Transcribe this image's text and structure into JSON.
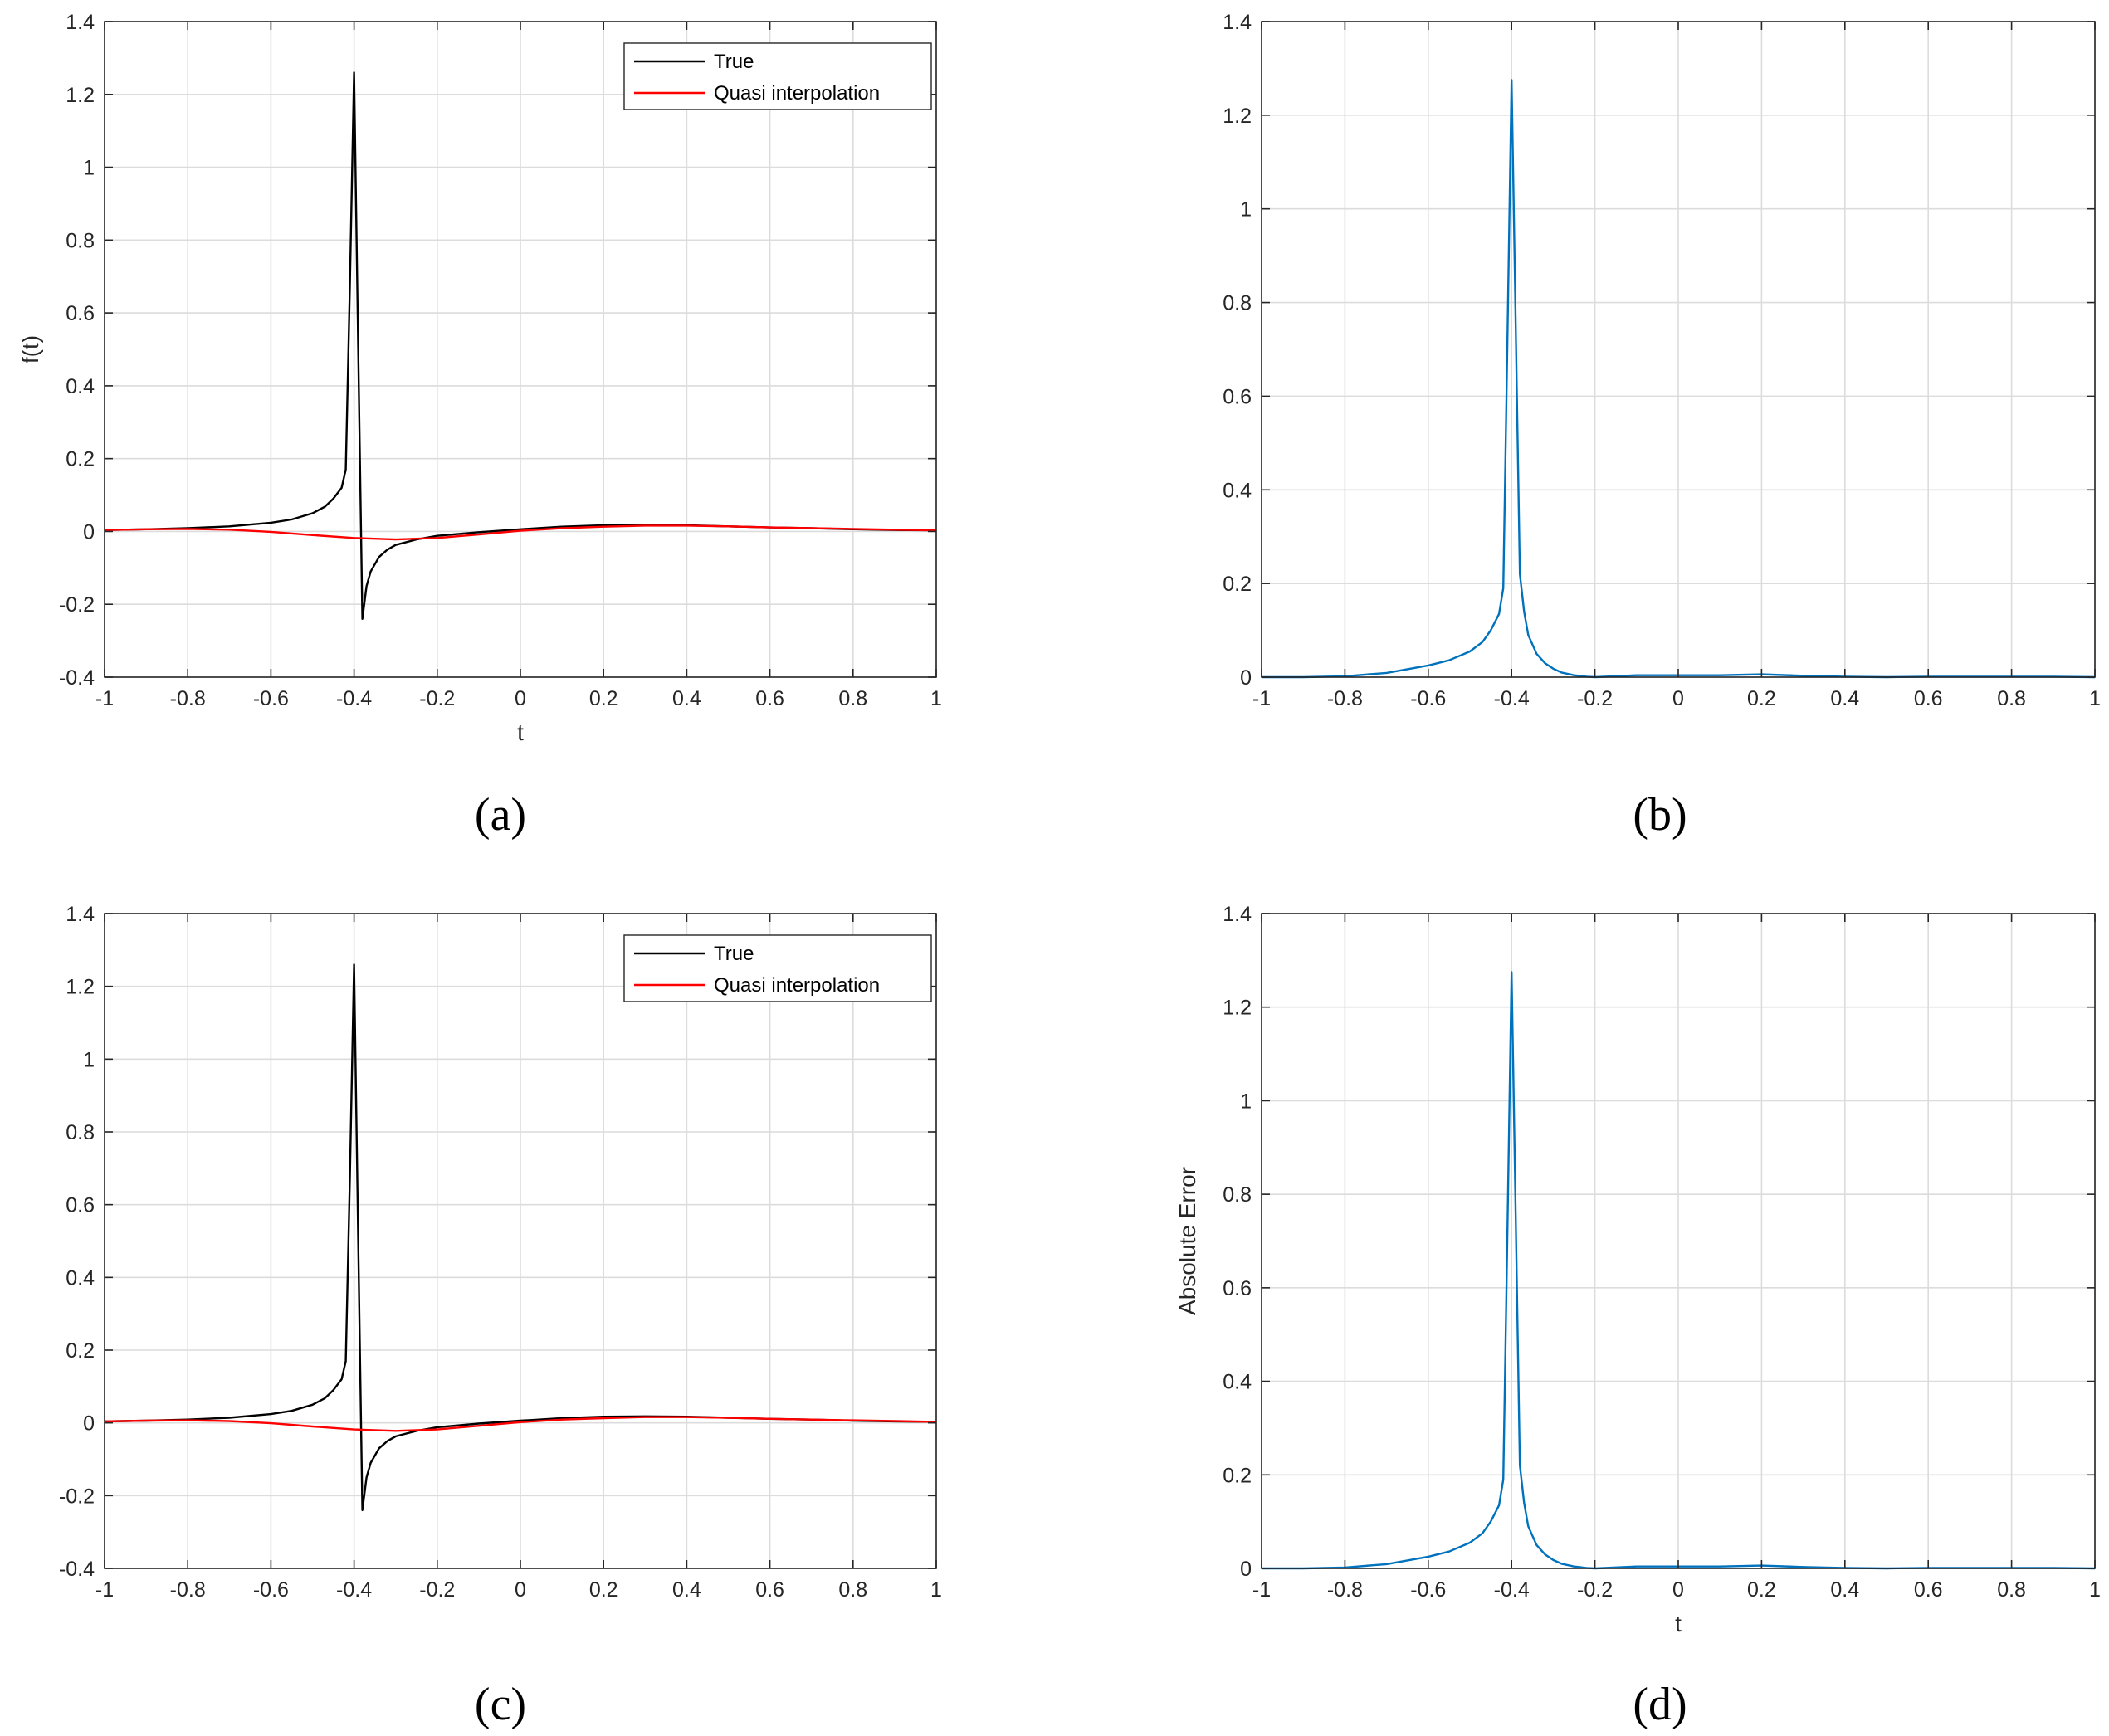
{
  "figure": {
    "panel_labels": [
      "(a)",
      "(b)",
      "(c)",
      "(d)"
    ]
  },
  "chart_data": [
    {
      "panel": "(a)",
      "type": "line",
      "title": "",
      "xlabel": "t",
      "ylabel": "f(t)",
      "xlim": [
        -1,
        1
      ],
      "ylim": [
        -0.4,
        1.4
      ],
      "xticks": [
        -1,
        -0.8,
        -0.6,
        -0.4,
        -0.2,
        0,
        0.2,
        0.4,
        0.6,
        0.8,
        1
      ],
      "xtick_labels": [
        "-1",
        "-0.8",
        "-0.6",
        "-0.4",
        "-0.2",
        "0",
        "0.2",
        "0.4",
        "0.6",
        "0.8",
        "1"
      ],
      "yticks": [
        -0.4,
        -0.2,
        0,
        0.2,
        0.4,
        0.6,
        0.8,
        1,
        1.2,
        1.4
      ],
      "ytick_labels": [
        "-0.4",
        "-0.2",
        "0",
        "0.2",
        "0.4",
        "0.6",
        "0.8",
        "1",
        "1.2",
        "1.4"
      ],
      "grid": true,
      "legend": "top-right",
      "series": [
        {
          "name": "True",
          "color": "#000000",
          "x": [
            -1,
            -0.9,
            -0.8,
            -0.7,
            -0.6,
            -0.55,
            -0.5,
            -0.47,
            -0.45,
            -0.43,
            -0.42,
            -0.41,
            -0.4,
            -0.39,
            -0.38,
            -0.37,
            -0.36,
            -0.34,
            -0.32,
            -0.3,
            -0.25,
            -0.2,
            -0.1,
            0,
            0.1,
            0.2,
            0.3,
            0.4,
            0.5,
            0.6,
            0.7,
            0.8,
            0.9,
            1
          ],
          "y": [
            0.004,
            0.006,
            0.009,
            0.014,
            0.024,
            0.033,
            0.05,
            0.068,
            0.09,
            0.12,
            0.17,
            0.68,
            1.26,
            0.5,
            -0.24,
            -0.15,
            -0.11,
            -0.07,
            -0.05,
            -0.037,
            -0.022,
            -0.012,
            -0.002,
            0.006,
            0.013,
            0.017,
            0.018,
            0.017,
            0.014,
            0.011,
            0.009,
            0.006,
            0.004,
            0.003
          ]
        },
        {
          "name": "Quasi interpolation",
          "color": "#ff0000",
          "x": [
            -1,
            -0.9,
            -0.8,
            -0.7,
            -0.6,
            -0.5,
            -0.4,
            -0.3,
            -0.2,
            -0.1,
            0,
            0.1,
            0.2,
            0.3,
            0.4,
            0.5,
            0.6,
            0.7,
            0.8,
            0.9,
            1
          ],
          "y": [
            0.004,
            0.006,
            0.007,
            0.005,
            -0.001,
            -0.01,
            -0.018,
            -0.022,
            -0.018,
            -0.008,
            0.002,
            0.009,
            0.013,
            0.016,
            0.016,
            0.014,
            0.011,
            0.009,
            0.007,
            0.005,
            0.003
          ]
        }
      ]
    },
    {
      "panel": "(b)",
      "type": "line",
      "title": "",
      "xlabel": "",
      "ylabel": "",
      "xlim": [
        -1,
        1
      ],
      "ylim": [
        0,
        1.4
      ],
      "xticks": [
        -1,
        -0.8,
        -0.6,
        -0.4,
        -0.2,
        0,
        0.2,
        0.4,
        0.6,
        0.8,
        1
      ],
      "xtick_labels": [
        "-1",
        "-0.8",
        "-0.6",
        "-0.4",
        "-0.2",
        "0",
        "0.2",
        "0.4",
        "0.6",
        "0.8",
        "1"
      ],
      "yticks": [
        0,
        0.2,
        0.4,
        0.6,
        0.8,
        1,
        1.2,
        1.4
      ],
      "ytick_labels": [
        "0",
        "0.2",
        "0.4",
        "0.6",
        "0.8",
        "1",
        "1.2",
        "1.4"
      ],
      "grid": true,
      "legend": "none",
      "series": [
        {
          "color": "#0072bd",
          "x": [
            -1,
            -0.9,
            -0.8,
            -0.7,
            -0.6,
            -0.55,
            -0.5,
            -0.47,
            -0.45,
            -0.43,
            -0.42,
            -0.41,
            -0.4,
            -0.39,
            -0.38,
            -0.37,
            -0.36,
            -0.34,
            -0.32,
            -0.3,
            -0.28,
            -0.25,
            -0.22,
            -0.2,
            -0.1,
            0,
            0.1,
            0.2,
            0.3,
            0.4,
            0.5,
            0.6,
            0.7,
            0.8,
            0.9,
            1
          ],
          "y": [
            0.0,
            0.0,
            0.002,
            0.009,
            0.025,
            0.036,
            0.055,
            0.075,
            0.1,
            0.135,
            0.19,
            0.72,
            1.275,
            0.75,
            0.22,
            0.14,
            0.09,
            0.05,
            0.03,
            0.018,
            0.01,
            0.004,
            0.001,
            0.0,
            0.004,
            0.004,
            0.004,
            0.006,
            0.003,
            0.001,
            0.0,
            0.001,
            0.001,
            0.001,
            0.001,
            0.0
          ]
        }
      ]
    },
    {
      "panel": "(c)",
      "type": "line",
      "title": "",
      "xlabel": "",
      "ylabel": "",
      "xlim": [
        -1,
        1
      ],
      "ylim": [
        -0.4,
        1.4
      ],
      "xticks": [
        -1,
        -0.8,
        -0.6,
        -0.4,
        -0.2,
        0,
        0.2,
        0.4,
        0.6,
        0.8,
        1
      ],
      "xtick_labels": [
        "-1",
        "-0.8",
        "-0.6",
        "-0.4",
        "-0.2",
        "0",
        "0.2",
        "0.4",
        "0.6",
        "0.8",
        "1"
      ],
      "yticks": [
        -0.4,
        -0.2,
        0,
        0.2,
        0.4,
        0.6,
        0.8,
        1,
        1.2,
        1.4
      ],
      "ytick_labels": [
        "-0.4",
        "-0.2",
        "0",
        "0.2",
        "0.4",
        "0.6",
        "0.8",
        "1",
        "1.2",
        "1.4"
      ],
      "grid": true,
      "legend": "top-right",
      "series": [
        {
          "name": "True",
          "color": "#000000",
          "x": [
            -1,
            -0.9,
            -0.8,
            -0.7,
            -0.6,
            -0.55,
            -0.5,
            -0.47,
            -0.45,
            -0.43,
            -0.42,
            -0.41,
            -0.4,
            -0.39,
            -0.38,
            -0.37,
            -0.36,
            -0.34,
            -0.32,
            -0.3,
            -0.25,
            -0.2,
            -0.1,
            0,
            0.1,
            0.2,
            0.3,
            0.4,
            0.5,
            0.6,
            0.7,
            0.8,
            0.9,
            1
          ],
          "y": [
            0.004,
            0.006,
            0.009,
            0.014,
            0.024,
            0.033,
            0.05,
            0.068,
            0.09,
            0.12,
            0.17,
            0.68,
            1.26,
            0.5,
            -0.24,
            -0.15,
            -0.11,
            -0.07,
            -0.05,
            -0.037,
            -0.022,
            -0.012,
            -0.002,
            0.006,
            0.013,
            0.017,
            0.018,
            0.017,
            0.014,
            0.011,
            0.009,
            0.006,
            0.004,
            0.003
          ]
        },
        {
          "name": "Quasi interpolation",
          "color": "#ff0000",
          "x": [
            -1,
            -0.9,
            -0.8,
            -0.7,
            -0.6,
            -0.5,
            -0.4,
            -0.3,
            -0.2,
            -0.1,
            0,
            0.1,
            0.2,
            0.3,
            0.4,
            0.5,
            0.6,
            0.7,
            0.8,
            0.9,
            1
          ],
          "y": [
            0.004,
            0.006,
            0.007,
            0.005,
            -0.001,
            -0.01,
            -0.018,
            -0.022,
            -0.018,
            -0.008,
            0.002,
            0.009,
            0.013,
            0.016,
            0.016,
            0.014,
            0.011,
            0.009,
            0.007,
            0.005,
            0.003
          ]
        }
      ]
    },
    {
      "panel": "(d)",
      "type": "line",
      "title": "",
      "xlabel": "t",
      "ylabel": "Absolute Error",
      "xlim": [
        -1,
        1
      ],
      "ylim": [
        0,
        1.4
      ],
      "xticks": [
        -1,
        -0.8,
        -0.6,
        -0.4,
        -0.2,
        0,
        0.2,
        0.4,
        0.6,
        0.8,
        1
      ],
      "xtick_labels": [
        "-1",
        "-0.8",
        "-0.6",
        "-0.4",
        "-0.2",
        "0",
        "0.2",
        "0.4",
        "0.6",
        "0.8",
        "1"
      ],
      "yticks": [
        0,
        0.2,
        0.4,
        0.6,
        0.8,
        1,
        1.2,
        1.4
      ],
      "ytick_labels": [
        "0",
        "0.2",
        "0.4",
        "0.6",
        "0.8",
        "1",
        "1.2",
        "1.4"
      ],
      "grid": true,
      "legend": "none",
      "series": [
        {
          "color": "#0072bd",
          "x": [
            -1,
            -0.9,
            -0.8,
            -0.7,
            -0.6,
            -0.55,
            -0.5,
            -0.47,
            -0.45,
            -0.43,
            -0.42,
            -0.41,
            -0.4,
            -0.39,
            -0.38,
            -0.37,
            -0.36,
            -0.34,
            -0.32,
            -0.3,
            -0.28,
            -0.25,
            -0.22,
            -0.2,
            -0.1,
            0,
            0.1,
            0.2,
            0.3,
            0.4,
            0.5,
            0.6,
            0.7,
            0.8,
            0.9,
            1
          ],
          "y": [
            0.0,
            0.0,
            0.002,
            0.009,
            0.025,
            0.036,
            0.055,
            0.075,
            0.1,
            0.135,
            0.19,
            0.72,
            1.275,
            0.75,
            0.22,
            0.14,
            0.09,
            0.05,
            0.03,
            0.018,
            0.01,
            0.004,
            0.001,
            0.0,
            0.004,
            0.004,
            0.004,
            0.006,
            0.003,
            0.001,
            0.0,
            0.001,
            0.001,
            0.001,
            0.001,
            0.0
          ]
        }
      ]
    }
  ]
}
